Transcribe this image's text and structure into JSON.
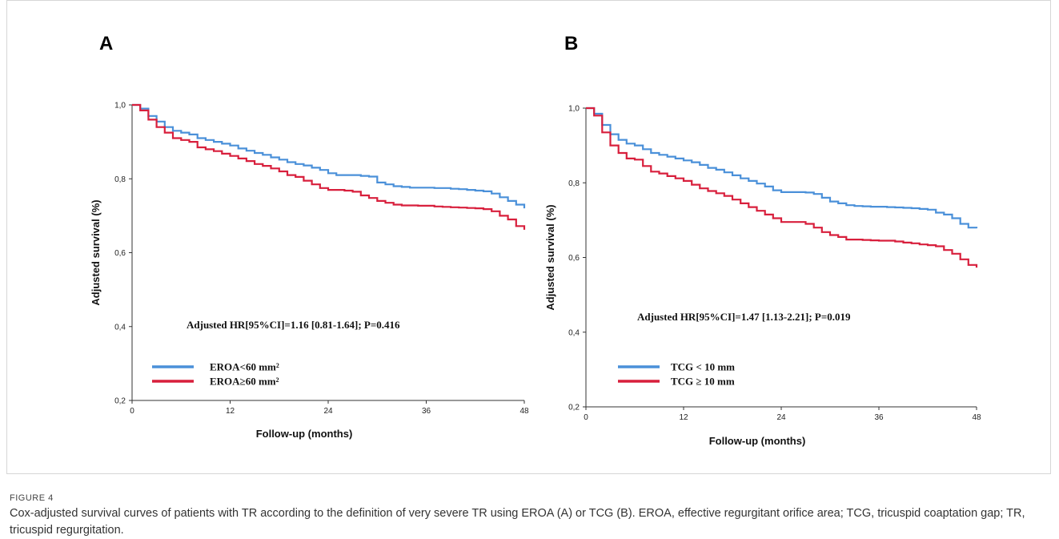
{
  "chart_data": [
    {
      "type": "line",
      "panel": "A",
      "title": "",
      "xlabel": "Follow-up (months)",
      "ylabel": "Adjusted survival (%)",
      "xlim": [
        0,
        48
      ],
      "ylim": [
        0.2,
        1.0
      ],
      "xticks": [
        0,
        12,
        24,
        36,
        48
      ],
      "xtick_labels": [
        "0",
        "12",
        "24",
        "36",
        "48"
      ],
      "yticks": [
        0.2,
        0.4,
        0.6,
        0.8,
        1.0
      ],
      "ytick_labels": [
        "0,2",
        "0,4",
        "0,6",
        "0,8",
        "1,0"
      ],
      "annotation": "Adjusted  HR[95%CI]=1.16 [0.81-1.64];  P=0.416",
      "legend_position": "bottom-left",
      "grid": false,
      "series": [
        {
          "name": "EROA<60 mm²",
          "color": "#4a90d9",
          "x": [
            0,
            1,
            2,
            3,
            4,
            5,
            6,
            7,
            8,
            9,
            10,
            11,
            12,
            13,
            14,
            15,
            16,
            17,
            18,
            19,
            20,
            21,
            22,
            23,
            24,
            25,
            26,
            27,
            28,
            29,
            30,
            31,
            32,
            33,
            34,
            35,
            36,
            37,
            38,
            39,
            40,
            41,
            42,
            43,
            44,
            45,
            46,
            47,
            48
          ],
          "y": [
            1.0,
            0.99,
            0.97,
            0.955,
            0.94,
            0.93,
            0.925,
            0.92,
            0.91,
            0.905,
            0.9,
            0.895,
            0.89,
            0.882,
            0.876,
            0.87,
            0.865,
            0.858,
            0.852,
            0.845,
            0.84,
            0.836,
            0.83,
            0.824,
            0.815,
            0.81,
            0.81,
            0.81,
            0.808,
            0.806,
            0.79,
            0.785,
            0.78,
            0.778,
            0.776,
            0.776,
            0.776,
            0.775,
            0.775,
            0.773,
            0.772,
            0.77,
            0.768,
            0.766,
            0.76,
            0.75,
            0.74,
            0.73,
            0.72
          ]
        },
        {
          "name": "EROA≥60 mm²",
          "color": "#d81f3c",
          "x": [
            0,
            1,
            2,
            3,
            4,
            5,
            6,
            7,
            8,
            9,
            10,
            11,
            12,
            13,
            14,
            15,
            16,
            17,
            18,
            19,
            20,
            21,
            22,
            23,
            24,
            25,
            26,
            27,
            28,
            29,
            30,
            31,
            32,
            33,
            34,
            35,
            36,
            37,
            38,
            39,
            40,
            41,
            42,
            43,
            44,
            45,
            46,
            47,
            48
          ],
          "y": [
            1.0,
            0.985,
            0.96,
            0.94,
            0.925,
            0.91,
            0.905,
            0.9,
            0.885,
            0.88,
            0.875,
            0.868,
            0.862,
            0.855,
            0.848,
            0.84,
            0.835,
            0.828,
            0.82,
            0.81,
            0.805,
            0.795,
            0.785,
            0.775,
            0.77,
            0.77,
            0.768,
            0.765,
            0.755,
            0.748,
            0.74,
            0.735,
            0.73,
            0.728,
            0.728,
            0.727,
            0.727,
            0.725,
            0.724,
            0.723,
            0.722,
            0.721,
            0.72,
            0.718,
            0.712,
            0.7,
            0.69,
            0.672,
            0.662
          ]
        }
      ]
    },
    {
      "type": "line",
      "panel": "B",
      "title": "",
      "xlabel": "Follow-up (months)",
      "ylabel": "Adjusted survival (%)",
      "xlim": [
        0,
        48
      ],
      "ylim": [
        0.2,
        1.0
      ],
      "xticks": [
        0,
        12,
        24,
        36,
        48
      ],
      "xtick_labels": [
        "0",
        "12",
        "24",
        "36",
        "48"
      ],
      "yticks": [
        0.2,
        0.4,
        0.6,
        0.8,
        1.0
      ],
      "ytick_labels": [
        "0,2",
        "0,4",
        "0,6",
        "0,8",
        "1,0"
      ],
      "annotation": "Adjusted  HR[95%CI]=1.47 [1.13-2.21];  P=0.019",
      "legend_position": "bottom-left",
      "grid": false,
      "series": [
        {
          "name": "TCG < 10 mm",
          "color": "#4a90d9",
          "x": [
            0,
            1,
            2,
            3,
            4,
            5,
            6,
            7,
            8,
            9,
            10,
            11,
            12,
            13,
            14,
            15,
            16,
            17,
            18,
            19,
            20,
            21,
            22,
            23,
            24,
            25,
            26,
            27,
            28,
            29,
            30,
            31,
            32,
            33,
            34,
            35,
            36,
            37,
            38,
            39,
            40,
            41,
            42,
            43,
            44,
            45,
            46,
            47,
            48
          ],
          "y": [
            1.0,
            0.985,
            0.955,
            0.93,
            0.915,
            0.905,
            0.9,
            0.89,
            0.88,
            0.875,
            0.87,
            0.865,
            0.86,
            0.855,
            0.848,
            0.84,
            0.835,
            0.828,
            0.82,
            0.812,
            0.805,
            0.798,
            0.79,
            0.78,
            0.775,
            0.775,
            0.775,
            0.774,
            0.77,
            0.76,
            0.75,
            0.745,
            0.74,
            0.738,
            0.737,
            0.736,
            0.736,
            0.735,
            0.734,
            0.733,
            0.732,
            0.73,
            0.728,
            0.72,
            0.715,
            0.705,
            0.69,
            0.68,
            0.678
          ]
        },
        {
          "name": "TCG ≥ 10 mm",
          "color": "#d81f3c",
          "x": [
            0,
            1,
            2,
            3,
            4,
            5,
            6,
            7,
            8,
            9,
            10,
            11,
            12,
            13,
            14,
            15,
            16,
            17,
            18,
            19,
            20,
            21,
            22,
            23,
            24,
            25,
            26,
            27,
            28,
            29,
            30,
            31,
            32,
            33,
            34,
            35,
            36,
            37,
            38,
            39,
            40,
            41,
            42,
            43,
            44,
            45,
            46,
            47,
            48
          ],
          "y": [
            1.0,
            0.98,
            0.935,
            0.9,
            0.88,
            0.865,
            0.862,
            0.845,
            0.83,
            0.825,
            0.818,
            0.812,
            0.805,
            0.795,
            0.785,
            0.778,
            0.772,
            0.765,
            0.755,
            0.745,
            0.735,
            0.725,
            0.715,
            0.705,
            0.695,
            0.695,
            0.695,
            0.69,
            0.68,
            0.668,
            0.66,
            0.655,
            0.648,
            0.648,
            0.647,
            0.646,
            0.645,
            0.645,
            0.643,
            0.64,
            0.638,
            0.635,
            0.633,
            0.63,
            0.62,
            0.61,
            0.595,
            0.58,
            0.573
          ]
        }
      ]
    }
  ],
  "caption": {
    "label": "FIGURE 4",
    "text": "Cox-adjusted survival curves of patients with TR according to the definition of very severe TR using EROA (A) or TCG (B). EROA, effective regurgitant orifice area; TCG, tricuspid coaptation gap; TR, tricuspid regurgitation."
  }
}
